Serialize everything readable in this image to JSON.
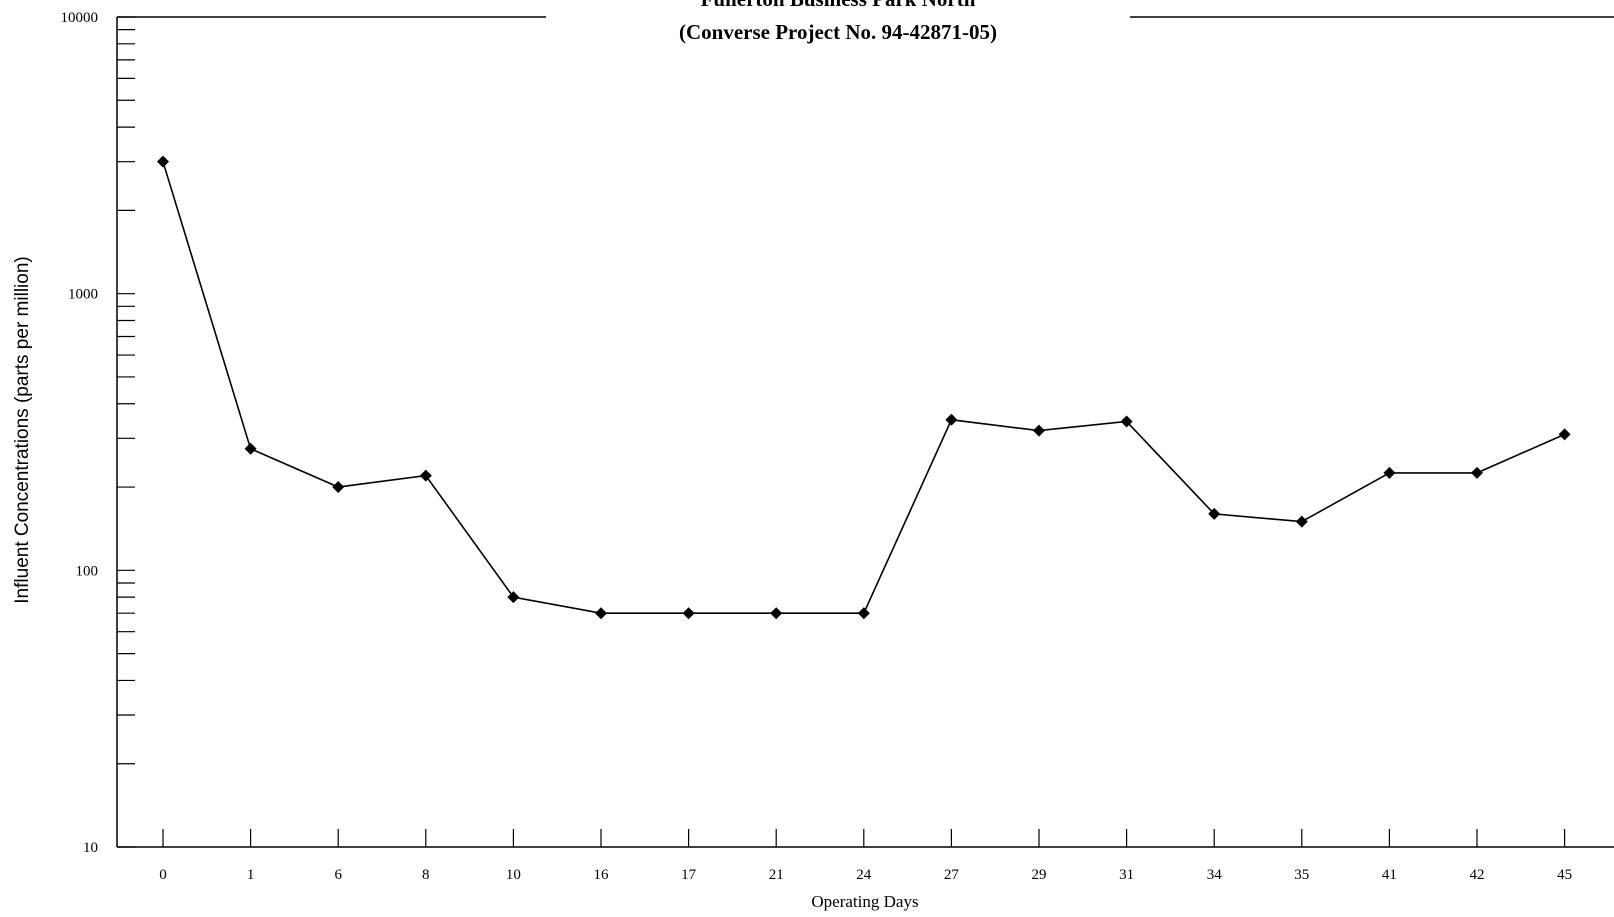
{
  "chart_data": {
    "type": "line",
    "title": "Fullerton Business Park North",
    "subtitle": "(Converse Project No. 94-42871-05)",
    "xlabel": "Operating Days",
    "ylabel": "Influent Concentrations (parts per million)",
    "yscale": "log",
    "ylim": [
      10,
      10000
    ],
    "y_ticks": [
      "10",
      "100",
      "1000",
      "10000"
    ],
    "grid": false,
    "categories": [
      "0",
      "1",
      "6",
      "8",
      "10",
      "16",
      "17",
      "21",
      "24",
      "27",
      "29",
      "31",
      "34",
      "35",
      "41",
      "42",
      "45"
    ],
    "series": [
      {
        "values": [
          3000,
          275,
          200,
          220,
          80,
          70,
          70,
          70,
          70,
          350,
          320,
          345,
          160,
          150,
          225,
          225,
          310
        ],
        "color": "#000000",
        "marker": "diamond"
      }
    ]
  }
}
